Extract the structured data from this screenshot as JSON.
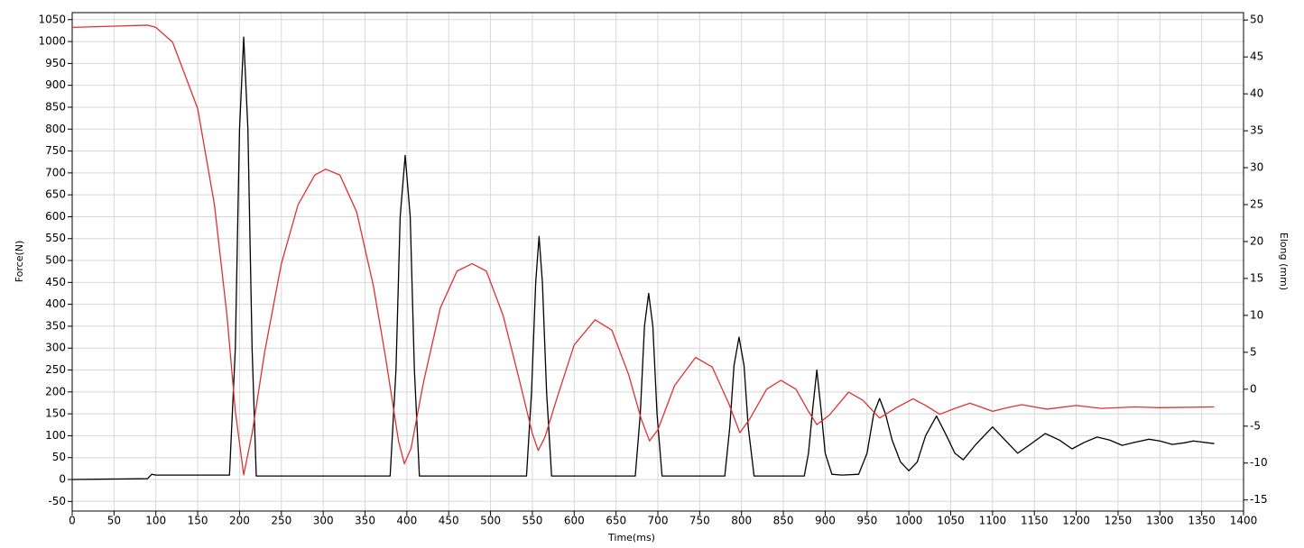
{
  "chart_data": {
    "type": "line",
    "xlabel": "Time(ms)",
    "ylabel": "Force(N)",
    "y2label": "Elong (mm)",
    "xlim": [
      0,
      1400
    ],
    "ylim": [
      -72,
      1066
    ],
    "y2lim": [
      -16.5,
      51
    ],
    "xticks": [
      0,
      50,
      100,
      150,
      200,
      250,
      300,
      350,
      400,
      450,
      500,
      550,
      600,
      650,
      700,
      750,
      800,
      850,
      900,
      950,
      1000,
      1050,
      1100,
      1150,
      1200,
      1250,
      1300,
      1350,
      1400
    ],
    "yticks": [
      -50,
      0,
      50,
      100,
      150,
      200,
      250,
      300,
      350,
      400,
      450,
      500,
      550,
      600,
      650,
      700,
      750,
      800,
      850,
      900,
      950,
      1000,
      1050
    ],
    "y2ticks": [
      -15,
      -10,
      -5,
      0,
      5,
      10,
      15,
      20,
      25,
      30,
      35,
      40,
      45,
      50
    ],
    "grid": true,
    "series": [
      {
        "color": "#000000",
        "x": [
          0,
          90,
          95,
          100,
          150,
          188,
          195,
          200,
          205,
          210,
          215,
          220,
          300,
          380,
          387,
          392,
          398,
          404,
          409,
          415,
          480,
          543,
          549,
          554,
          558,
          562,
          567,
          573,
          620,
          673,
          679,
          684,
          689,
          694,
          699,
          705,
          740,
          780,
          786,
          791,
          797,
          803,
          808,
          815,
          850,
          875,
          880,
          885,
          890,
          895,
          900,
          908,
          920,
          940,
          950,
          958,
          965,
          972,
          980,
          990,
          1000,
          1010,
          1020,
          1033,
          1045,
          1055,
          1065,
          1080,
          1100,
          1115,
          1130,
          1145,
          1163,
          1180,
          1195,
          1210,
          1225,
          1240,
          1255,
          1270,
          1287,
          1300,
          1315,
          1330,
          1340,
          1365
        ],
        "values": [
          0,
          2,
          12,
          10,
          10,
          10,
          300,
          800,
          1010,
          800,
          300,
          8,
          8,
          8,
          250,
          600,
          740,
          600,
          250,
          8,
          8,
          8,
          200,
          450,
          555,
          450,
          200,
          8,
          8,
          8,
          150,
          350,
          425,
          350,
          150,
          8,
          8,
          8,
          120,
          260,
          325,
          260,
          120,
          8,
          8,
          8,
          60,
          160,
          250,
          160,
          60,
          12,
          10,
          12,
          60,
          150,
          185,
          150,
          90,
          40,
          20,
          40,
          100,
          145,
          100,
          60,
          45,
          80,
          120,
          90,
          60,
          80,
          105,
          90,
          70,
          85,
          97,
          90,
          78,
          85,
          92,
          88,
          80,
          84,
          88,
          82
        ]
      },
      {
        "color": "#e03030",
        "axis": "y2",
        "x": [
          0,
          90,
          100,
          120,
          150,
          170,
          185,
          195,
          205,
          215,
          230,
          250,
          270,
          290,
          303,
          320,
          340,
          360,
          375,
          390,
          397,
          405,
          420,
          440,
          460,
          478,
          495,
          515,
          535,
          550,
          557,
          565,
          580,
          600,
          625,
          645,
          665,
          680,
          690,
          700,
          720,
          745,
          765,
          785,
          798,
          810,
          830,
          847,
          865,
          880,
          890,
          905,
          928,
          945,
          965,
          985,
          1005,
          1020,
          1037,
          1055,
          1073,
          1088,
          1100,
          1118,
          1135,
          1150,
          1165,
          1200,
          1230,
          1270,
          1300,
          1365
        ],
        "values": [
          49.0,
          49.3,
          49,
          47,
          38,
          25,
          10,
          -3,
          -11.6,
          -6,
          5,
          17,
          25,
          29,
          29.8,
          29,
          24,
          14,
          4,
          -7,
          -10.1,
          -8,
          1,
          11,
          16,
          17,
          16,
          10,
          1,
          -6,
          -8.3,
          -6.5,
          -1,
          6,
          9.4,
          8,
          2,
          -4,
          -7,
          -5.5,
          0.5,
          4.3,
          3,
          -2,
          -5.9,
          -4,
          0,
          1.2,
          0,
          -3,
          -4.8,
          -3.5,
          -0.4,
          -1.5,
          -3.9,
          -2.5,
          -1.3,
          -2.2,
          -3.4,
          -2.6,
          -1.9,
          -2.5,
          -3.0,
          -2.5,
          -2.1,
          -2.4,
          -2.7,
          -2.2,
          -2.6,
          -2.4,
          -2.5,
          -2.4
        ]
      }
    ]
  }
}
